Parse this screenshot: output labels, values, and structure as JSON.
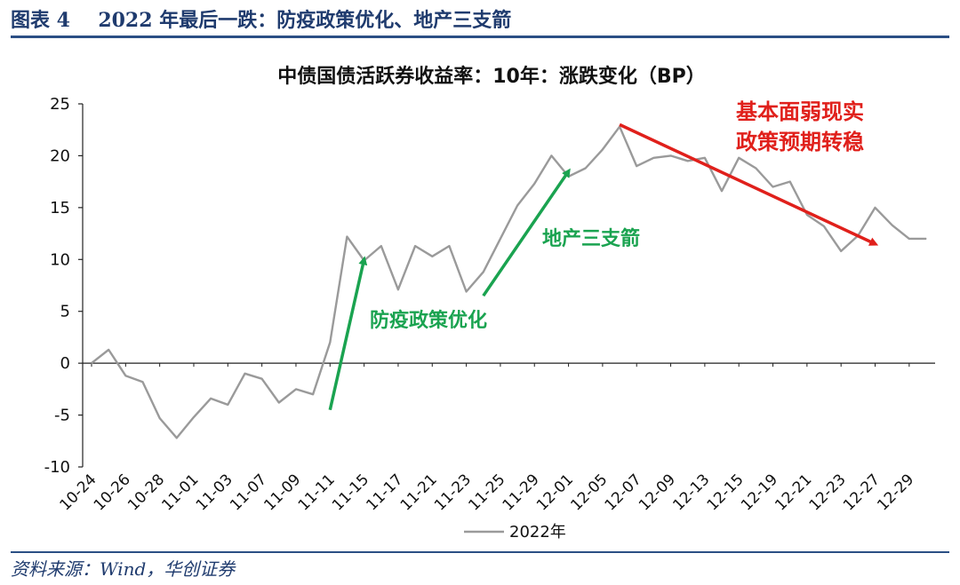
{
  "header": {
    "label": "图表 4",
    "title": "2022 年最后一跌：防疫政策优化、地产三支箭"
  },
  "source": "资料来源：Wind，华创证券",
  "colors": {
    "header": "#1f3b6e",
    "line": "#9a9a9a",
    "green": "#1aa350",
    "red": "#e0201b"
  },
  "chart_data": {
    "type": "line",
    "title": "中债国债活跃券收益率：10年：涨跌变化（BP）",
    "xlabel": "",
    "ylabel": "",
    "ylim": [
      -10,
      25
    ],
    "yticks": [
      -10,
      -5,
      0,
      5,
      10,
      15,
      20,
      25
    ],
    "grid": false,
    "legend_position": "bottom-center",
    "x_tick_labels": [
      "10-24",
      "10-26",
      "10-28",
      "11-01",
      "11-03",
      "11-07",
      "11-09",
      "11-11",
      "11-15",
      "11-17",
      "11-21",
      "11-23",
      "11-25",
      "11-29",
      "12-01",
      "12-05",
      "12-07",
      "12-09",
      "12-13",
      "12-15",
      "12-19",
      "12-21",
      "12-23",
      "12-27",
      "12-29"
    ],
    "x": [
      "10-24",
      "10-25",
      "10-26",
      "10-27",
      "10-28",
      "10-31",
      "11-01",
      "11-02",
      "11-03",
      "11-04",
      "11-07",
      "11-08",
      "11-09",
      "11-10",
      "11-11",
      "11-14",
      "11-15",
      "11-16",
      "11-17",
      "11-18",
      "11-21",
      "11-22",
      "11-23",
      "11-24",
      "11-25",
      "11-28",
      "11-29",
      "11-30",
      "12-01",
      "12-02",
      "12-05",
      "12-06",
      "12-07",
      "12-08",
      "12-09",
      "12-12",
      "12-13",
      "12-14",
      "12-15",
      "12-16",
      "12-19",
      "12-20",
      "12-21",
      "12-22",
      "12-23",
      "12-26",
      "12-27",
      "12-28",
      "12-29",
      "12-30"
    ],
    "series": [
      {
        "name": "2022年",
        "values": [
          0.0,
          1.3,
          -1.2,
          -1.8,
          -5.3,
          -7.2,
          -5.2,
          -3.4,
          -4.0,
          -1.0,
          -1.5,
          -3.8,
          -2.5,
          -3.0,
          2.0,
          12.2,
          9.9,
          11.3,
          7.1,
          11.3,
          10.3,
          11.3,
          6.9,
          8.8,
          12.0,
          15.2,
          17.3,
          20.0,
          18.0,
          18.8,
          20.6,
          22.8,
          19.0,
          19.8,
          20.0,
          19.5,
          19.8,
          16.6,
          19.8,
          18.8,
          17.0,
          17.5,
          14.3,
          13.2,
          10.8,
          12.3,
          15.0,
          13.3,
          12.0,
          12.0
        ]
      }
    ],
    "annotations": [
      {
        "text": "防疫政策优化",
        "color": "green",
        "arrow_from": [
          "11-11",
          -4.5
        ],
        "arrow_to": [
          "11-15",
          10.0
        ]
      },
      {
        "text": "地产三支箭",
        "color": "green",
        "arrow_from": [
          "11-24",
          6.5
        ],
        "arrow_to": [
          "12-01",
          18.5
        ]
      },
      {
        "text": "基本面弱现实",
        "color": "red"
      },
      {
        "text": "政策预期转稳",
        "color": "red",
        "arrow_from": [
          "12-06",
          23.0
        ],
        "arrow_to": [
          "12-27",
          11.5
        ]
      }
    ]
  }
}
